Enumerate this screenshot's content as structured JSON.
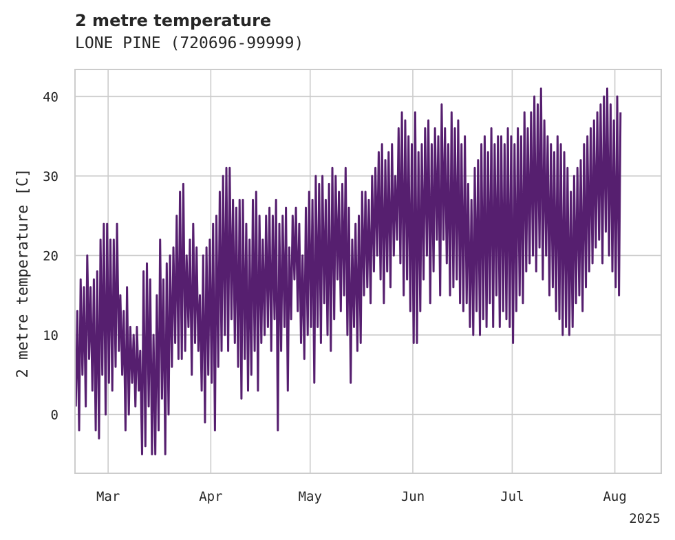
{
  "chart_data": {
    "type": "line",
    "title": "2 metre temperature",
    "subtitle": "LONE PINE (720696-99999)",
    "ylabel": "2 metre temperature [C]",
    "xlabel": "",
    "x_year_label": "2025",
    "x_range": [
      "2025-02-19",
      "2025-08-15"
    ],
    "ylim": [
      -7.4,
      43.4
    ],
    "y_ticks": [
      0,
      10,
      20,
      30,
      40
    ],
    "x_ticks": [
      {
        "date": "2025-03-01",
        "label": "Mar"
      },
      {
        "date": "2025-04-01",
        "label": "Apr"
      },
      {
        "date": "2025-05-01",
        "label": "May"
      },
      {
        "date": "2025-06-01",
        "label": "Jun"
      },
      {
        "date": "2025-07-01",
        "label": "Jul"
      },
      {
        "date": "2025-08-01",
        "label": "Aug"
      }
    ],
    "grid": true,
    "line_color": "#561f6f",
    "series": [
      {
        "name": "",
        "start": "2025-02-19",
        "daily_min_max": [
          [
            1,
            13
          ],
          [
            -2,
            17
          ],
          [
            5,
            16
          ],
          [
            1,
            20
          ],
          [
            7,
            16
          ],
          [
            3,
            17
          ],
          [
            -2,
            18
          ],
          [
            -3,
            22
          ],
          [
            5,
            24
          ],
          [
            0,
            24
          ],
          [
            4,
            22
          ],
          [
            3,
            22
          ],
          [
            6,
            24
          ],
          [
            8,
            15
          ],
          [
            5,
            13
          ],
          [
            -2,
            16
          ],
          [
            0,
            11
          ],
          [
            4,
            10
          ],
          [
            1,
            11
          ],
          [
            3,
            8
          ],
          [
            -5,
            18
          ],
          [
            -4,
            19
          ],
          [
            1,
            17
          ],
          [
            -5,
            10
          ],
          [
            -5,
            15
          ],
          [
            -2,
            22
          ],
          [
            2,
            17
          ],
          [
            -5,
            19
          ],
          [
            0,
            20
          ],
          [
            6,
            21
          ],
          [
            9,
            25
          ],
          [
            7,
            28
          ],
          [
            7,
            29
          ],
          [
            8,
            20
          ],
          [
            11,
            22
          ],
          [
            5,
            24
          ],
          [
            9,
            21
          ],
          [
            8,
            15
          ],
          [
            3,
            20
          ],
          [
            -1,
            21
          ],
          [
            5,
            22
          ],
          [
            4,
            24
          ],
          [
            -2,
            25
          ],
          [
            6,
            28
          ],
          [
            8,
            30
          ],
          [
            10,
            31
          ],
          [
            8,
            31
          ],
          [
            12,
            27
          ],
          [
            9,
            26
          ],
          [
            6,
            27
          ],
          [
            2,
            27
          ],
          [
            7,
            24
          ],
          [
            3,
            22
          ],
          [
            5,
            27
          ],
          [
            8,
            28
          ],
          [
            3,
            25
          ],
          [
            9,
            22
          ],
          [
            10,
            25
          ],
          [
            11,
            26
          ],
          [
            8,
            25
          ],
          [
            12,
            27
          ],
          [
            -2,
            24
          ],
          [
            8,
            25
          ],
          [
            11,
            26
          ],
          [
            3,
            21
          ],
          [
            12,
            25
          ],
          [
            17,
            26
          ],
          [
            13,
            24
          ],
          [
            9,
            20
          ],
          [
            7,
            26
          ],
          [
            10,
            28
          ],
          [
            11,
            27
          ],
          [
            4,
            30
          ],
          [
            11,
            29
          ],
          [
            9,
            30
          ],
          [
            14,
            27
          ],
          [
            10,
            29
          ],
          [
            8,
            31
          ],
          [
            12,
            30
          ],
          [
            17,
            28
          ],
          [
            13,
            29
          ],
          [
            15,
            31
          ],
          [
            10,
            26
          ],
          [
            4,
            22
          ],
          [
            11,
            24
          ],
          [
            8,
            25
          ],
          [
            9,
            28
          ],
          [
            15,
            28
          ],
          [
            16,
            27
          ],
          [
            14,
            30
          ],
          [
            18,
            31
          ],
          [
            20,
            33
          ],
          [
            17,
            34
          ],
          [
            14,
            32
          ],
          [
            18,
            33
          ],
          [
            16,
            34
          ],
          [
            20,
            30
          ],
          [
            22,
            36
          ],
          [
            19,
            38
          ],
          [
            15,
            37
          ],
          [
            17,
            35
          ],
          [
            13,
            34
          ],
          [
            9,
            38
          ],
          [
            9,
            33
          ],
          [
            13,
            34
          ],
          [
            17,
            36
          ],
          [
            20,
            37
          ],
          [
            14,
            34
          ],
          [
            18,
            36
          ],
          [
            22,
            35
          ],
          [
            15,
            39
          ],
          [
            22,
            36
          ],
          [
            19,
            34
          ],
          [
            15,
            38
          ],
          [
            16,
            36
          ],
          [
            17,
            37
          ],
          [
            14,
            34
          ],
          [
            13,
            35
          ],
          [
            14,
            29
          ],
          [
            11,
            27
          ],
          [
            10,
            31
          ],
          [
            13,
            32
          ],
          [
            10,
            34
          ],
          [
            12,
            35
          ],
          [
            11,
            33
          ],
          [
            14,
            36
          ],
          [
            11,
            34
          ],
          [
            15,
            35
          ],
          [
            11,
            35
          ],
          [
            13,
            34
          ],
          [
            12,
            36
          ],
          [
            11,
            35
          ],
          [
            9,
            34
          ],
          [
            13,
            36
          ],
          [
            15,
            35
          ],
          [
            14,
            38
          ],
          [
            18,
            36
          ],
          [
            19,
            38
          ],
          [
            20,
            40
          ],
          [
            18,
            39
          ],
          [
            21,
            41
          ],
          [
            17,
            37
          ],
          [
            20,
            35
          ],
          [
            15,
            34
          ],
          [
            16,
            33
          ],
          [
            13,
            35
          ],
          [
            12,
            34
          ],
          [
            10,
            33
          ],
          [
            11,
            31
          ],
          [
            10,
            28
          ],
          [
            11,
            30
          ],
          [
            14,
            31
          ],
          [
            15,
            32
          ],
          [
            13,
            34
          ],
          [
            16,
            35
          ],
          [
            18,
            36
          ],
          [
            19,
            37
          ],
          [
            21,
            38
          ],
          [
            22,
            39
          ],
          [
            19,
            40
          ],
          [
            23,
            41
          ],
          [
            20,
            39
          ],
          [
            18,
            37
          ],
          [
            16,
            40
          ],
          [
            15,
            38
          ]
        ],
        "values_note": "daily minimum/maximum (C)"
      }
    ]
  }
}
